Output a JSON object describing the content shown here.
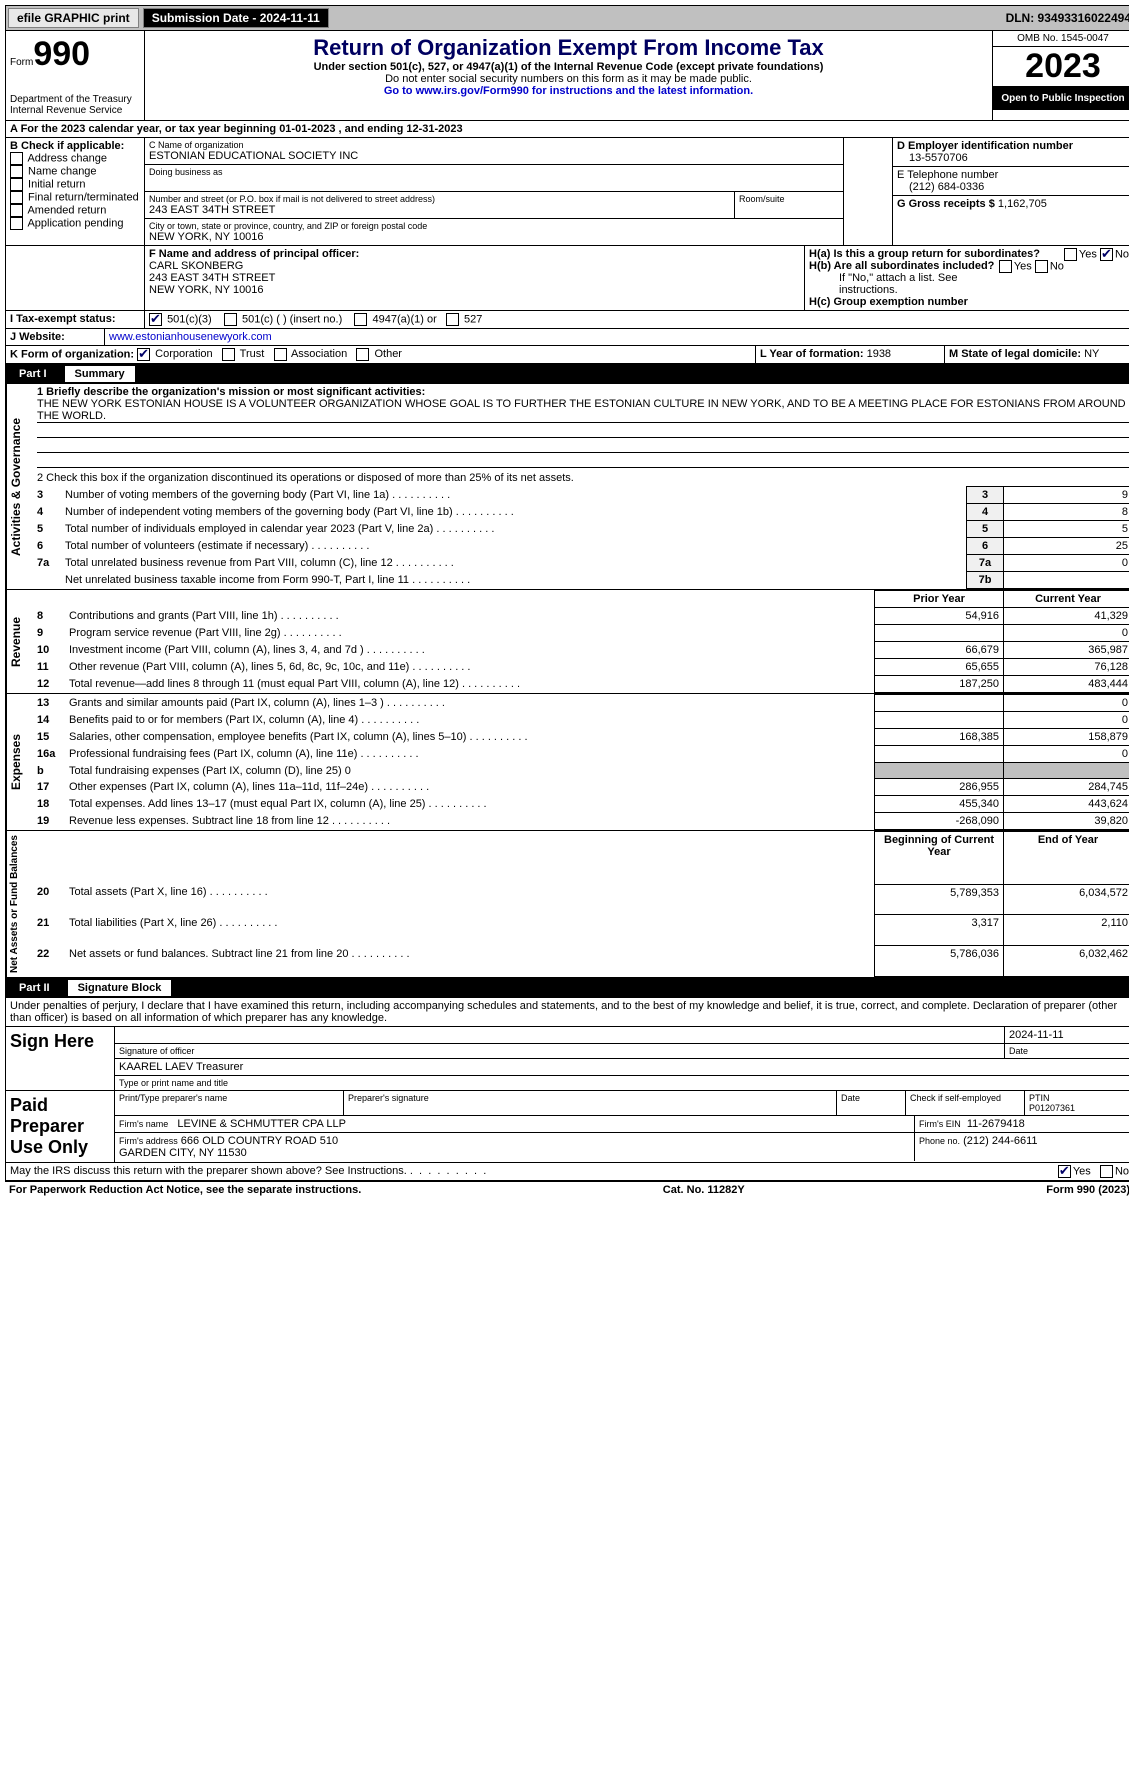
{
  "topbar": {
    "efile_label": "efile GRAPHIC print",
    "submission_label": "Submission Date - 2024-11-11",
    "dln_label": "DLN: 93493316022494"
  },
  "header": {
    "form_label": "Form",
    "form_number": "990",
    "title": "Return of Organization Exempt From Income Tax",
    "subtitle1": "Under section 501(c), 527, or 4947(a)(1) of the Internal Revenue Code (except private foundations)",
    "subtitle2": "Do not enter social security numbers on this form as it may be made public.",
    "subtitle3": "Go to www.irs.gov/Form990 for instructions and the latest information.",
    "dept": "Department of the Treasury\nInternal Revenue Service",
    "omb": "OMB No. 1545-0047",
    "year": "2023",
    "open": "Open to Public Inspection"
  },
  "lineA": "A For the 2023 calendar year, or tax year beginning 01-01-2023   , and ending 12-31-2023",
  "boxB": {
    "label": "B Check if applicable:",
    "opts": [
      "Address change",
      "Name change",
      "Initial return",
      "Final return/terminated",
      "Amended return",
      "Application pending"
    ]
  },
  "boxC": {
    "name_label": "C Name of organization",
    "name": "ESTONIAN EDUCATIONAL SOCIETY INC",
    "dba_label": "Doing business as",
    "street_label": "Number and street (or P.O. box if mail is not delivered to street address)",
    "street": "243 EAST 34TH STREET",
    "suite_label": "Room/suite",
    "city_label": "City or town, state or province, country, and ZIP or foreign postal code",
    "city": "NEW YORK, NY  10016"
  },
  "boxD": {
    "label": "D Employer identification number",
    "value": "13-5570706"
  },
  "boxE": {
    "label": "E Telephone number",
    "value": "(212) 684-0336"
  },
  "boxG": {
    "label": "G Gross receipts $",
    "value": "1,162,705"
  },
  "boxF": {
    "label": "F Name and address of principal officer:",
    "name": "CARL SKONBERG",
    "addr1": "243 EAST 34TH STREET",
    "addr2": "NEW YORK, NY  10016"
  },
  "boxH": {
    "a": "H(a)  Is this a group return for subordinates?",
    "b": "H(b)  Are all subordinates included?",
    "b_note": "If \"No,\" attach a list. See instructions.",
    "c": "H(c)  Group exemption number",
    "yes": "Yes",
    "no": "No"
  },
  "boxI": {
    "label": "I   Tax-exempt status:",
    "opt1": "501(c)(3)",
    "opt2": "501(c) (  ) (insert no.)",
    "opt3": "4947(a)(1) or",
    "opt4": "527"
  },
  "boxJ": {
    "label": "J   Website:",
    "value": "www.estonianhousenewyork.com"
  },
  "boxK": {
    "label": "K Form of organization:",
    "opts": [
      "Corporation",
      "Trust",
      "Association",
      "Other"
    ]
  },
  "boxL": {
    "label": "L Year of formation:",
    "value": "1938"
  },
  "boxM": {
    "label": "M State of legal domicile:",
    "value": "NY"
  },
  "partI": {
    "title": "Part I",
    "name": "Summary",
    "line1_label": "1  Briefly describe the organization's mission or most significant activities:",
    "mission": "THE NEW YORK ESTONIAN HOUSE IS A VOLUNTEER ORGANIZATION WHOSE GOAL IS TO FURTHER THE ESTONIAN CULTURE IN NEW YORK, AND TO BE A MEETING PLACE FOR ESTONIANS FROM AROUND THE WORLD.",
    "line2": "2   Check this box       if the organization discontinued its operations or disposed of more than 25% of its net assets.",
    "gov_lines": [
      {
        "n": "3",
        "t": "Number of voting members of the governing body (Part VI, line 1a)",
        "b": "3",
        "v": "9"
      },
      {
        "n": "4",
        "t": "Number of independent voting members of the governing body (Part VI, line 1b)",
        "b": "4",
        "v": "8"
      },
      {
        "n": "5",
        "t": "Total number of individuals employed in calendar year 2023 (Part V, line 2a)",
        "b": "5",
        "v": "5"
      },
      {
        "n": "6",
        "t": "Total number of volunteers (estimate if necessary)",
        "b": "6",
        "v": "25"
      },
      {
        "n": "7a",
        "t": "Total unrelated business revenue from Part VIII, column (C), line 12",
        "b": "7a",
        "v": "0"
      },
      {
        "n": "",
        "t": "Net unrelated business taxable income from Form 990-T, Part I, line 11",
        "b": "7b",
        "v": ""
      }
    ],
    "col_prior": "Prior Year",
    "col_current": "Current Year",
    "rev_lines": [
      {
        "n": "8",
        "t": "Contributions and grants (Part VIII, line 1h)",
        "p": "54,916",
        "c": "41,329"
      },
      {
        "n": "9",
        "t": "Program service revenue (Part VIII, line 2g)",
        "p": "",
        "c": "0"
      },
      {
        "n": "10",
        "t": "Investment income (Part VIII, column (A), lines 3, 4, and 7d )",
        "p": "66,679",
        "c": "365,987"
      },
      {
        "n": "11",
        "t": "Other revenue (Part VIII, column (A), lines 5, 6d, 8c, 9c, 10c, and 11e)",
        "p": "65,655",
        "c": "76,128"
      },
      {
        "n": "12",
        "t": "Total revenue—add lines 8 through 11 (must equal Part VIII, column (A), line 12)",
        "p": "187,250",
        "c": "483,444"
      }
    ],
    "exp_lines": [
      {
        "n": "13",
        "t": "Grants and similar amounts paid (Part IX, column (A), lines 1–3 )",
        "p": "",
        "c": "0"
      },
      {
        "n": "14",
        "t": "Benefits paid to or for members (Part IX, column (A), line 4)",
        "p": "",
        "c": "0"
      },
      {
        "n": "15",
        "t": "Salaries, other compensation, employee benefits (Part IX, column (A), lines 5–10)",
        "p": "168,385",
        "c": "158,879"
      },
      {
        "n": "16a",
        "t": "Professional fundraising fees (Part IX, column (A), line 11e)",
        "p": "",
        "c": "0"
      },
      {
        "n": "b",
        "t": "Total fundraising expenses (Part IX, column (D), line 25) 0",
        "p": "SHADE",
        "c": "SHADE"
      },
      {
        "n": "17",
        "t": "Other expenses (Part IX, column (A), lines 11a–11d, 11f–24e)",
        "p": "286,955",
        "c": "284,745"
      },
      {
        "n": "18",
        "t": "Total expenses. Add lines 13–17 (must equal Part IX, column (A), line 25)",
        "p": "455,340",
        "c": "443,624"
      },
      {
        "n": "19",
        "t": "Revenue less expenses. Subtract line 18 from line 12",
        "p": "-268,090",
        "c": "39,820"
      }
    ],
    "col_begin": "Beginning of Current Year",
    "col_end": "End of Year",
    "na_lines": [
      {
        "n": "20",
        "t": "Total assets (Part X, line 16)",
        "p": "5,789,353",
        "c": "6,034,572"
      },
      {
        "n": "21",
        "t": "Total liabilities (Part X, line 26)",
        "p": "3,317",
        "c": "2,110"
      },
      {
        "n": "22",
        "t": "Net assets or fund balances. Subtract line 21 from line 20",
        "p": "5,786,036",
        "c": "6,032,462"
      }
    ],
    "side_gov": "Activities & Governance",
    "side_rev": "Revenue",
    "side_exp": "Expenses",
    "side_na": "Net Assets or Fund Balances"
  },
  "partII": {
    "title": "Part II",
    "name": "Signature Block",
    "perjury": "Under penalties of perjury, I declare that I have examined this return, including accompanying schedules and statements, and to the best of my knowledge and belief, it is true, correct, and complete. Declaration of preparer (other than officer) is based on all information of which preparer has any knowledge.",
    "sign_here": "Sign Here",
    "sig_officer": "Signature of officer",
    "sig_date": "2024-11-11",
    "sig_name": "KAAREL LAEV  Treasurer",
    "sig_type": "Type or print name and title",
    "date_label": "Date",
    "paid": "Paid Preparer Use Only",
    "prep_name_label": "Print/Type preparer's name",
    "prep_sig_label": "Preparer's signature",
    "check_if": "Check       if self-employed",
    "ptin_label": "PTIN",
    "ptin": "P01207361",
    "firm_name_label": "Firm's name",
    "firm_name": "LEVINE & SCHMUTTER CPA LLP",
    "firm_ein_label": "Firm's EIN",
    "firm_ein": "11-2679418",
    "firm_addr_label": "Firm's address",
    "firm_addr": "666 OLD COUNTRY ROAD 510\nGARDEN CITY, NY  11530",
    "phone_label": "Phone no.",
    "phone": "(212) 244-6611",
    "discuss": "May the IRS discuss this return with the preparer shown above? See Instructions.",
    "yes": "Yes",
    "no": "No"
  },
  "footer": {
    "left": "For Paperwork Reduction Act Notice, see the separate instructions.",
    "mid": "Cat. No. 11282Y",
    "right": "Form 990 (2023)"
  }
}
